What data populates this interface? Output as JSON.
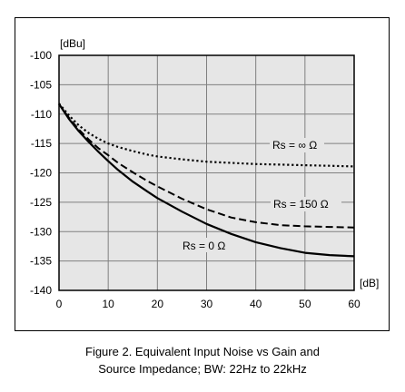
{
  "chart_data": {
    "type": "line",
    "title": "",
    "xlabel": "[dB]",
    "ylabel": "[dBu]",
    "xlim": [
      0,
      60
    ],
    "ylim": [
      -140,
      -100
    ],
    "xticks": [
      0,
      10,
      20,
      30,
      40,
      50,
      60
    ],
    "yticks": [
      -100,
      -105,
      -110,
      -115,
      -120,
      -125,
      -130,
      -135,
      -140
    ],
    "grid": true,
    "legend": "inline labels on curves",
    "series": [
      {
        "name": "Rs = ∞ Ω",
        "style": "dotted",
        "x": [
          0,
          2,
          4,
          6,
          8,
          10,
          12,
          15,
          18,
          20,
          25,
          30,
          35,
          40,
          45,
          50,
          55,
          60
        ],
        "y": [
          -108.2,
          -110.2,
          -111.9,
          -113.2,
          -114.2,
          -115.0,
          -115.6,
          -116.3,
          -116.9,
          -117.2,
          -117.7,
          -118.1,
          -118.3,
          -118.5,
          -118.6,
          -118.7,
          -118.8,
          -118.9
        ]
      },
      {
        "name": "Rs = 150 Ω",
        "style": "dashed",
        "x": [
          0,
          2,
          4,
          6,
          8,
          10,
          12,
          15,
          18,
          20,
          25,
          30,
          35,
          40,
          45,
          50,
          55,
          60
        ],
        "y": [
          -108.3,
          -110.6,
          -112.6,
          -114.3,
          -115.8,
          -117.0,
          -118.3,
          -119.9,
          -121.4,
          -122.3,
          -124.4,
          -126.2,
          -127.6,
          -128.4,
          -128.9,
          -129.1,
          -129.2,
          -129.3
        ]
      },
      {
        "name": "Rs = 0 Ω",
        "style": "solid",
        "x": [
          0,
          2,
          4,
          6,
          8,
          10,
          12,
          15,
          18,
          20,
          25,
          30,
          35,
          40,
          45,
          50,
          55,
          60
        ],
        "y": [
          -108.3,
          -110.8,
          -112.9,
          -114.7,
          -116.4,
          -118.0,
          -119.5,
          -121.5,
          -123.2,
          -124.3,
          -126.6,
          -128.7,
          -130.4,
          -131.8,
          -132.8,
          -133.6,
          -134.0,
          -134.2
        ]
      }
    ]
  },
  "labels": {
    "rs_inf": "Rs = ∞ Ω",
    "rs_150": "Rs = 150 Ω",
    "rs_0": "Rs = 0 Ω"
  },
  "caption": {
    "line1": "Figure 2. Equivalent Input Noise vs Gain and",
    "line2": "Source Impedance; BW: 22Hz to 22kHz"
  }
}
